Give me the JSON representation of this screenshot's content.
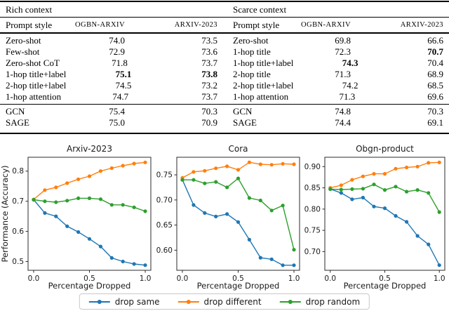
{
  "table": {
    "halves": [
      {
        "context_label": "Rich context",
        "columns": [
          "Prompt style",
          "OGBN-ARXIV",
          "ARXIV-2023"
        ],
        "groups": [
          {
            "rows": [
              {
                "label": "Zero-shot",
                "values": [
                  "74.0",
                  "73.5"
                ],
                "bold": [
                  false,
                  false
                ]
              },
              {
                "label": "Few-shot",
                "values": [
                  "72.9",
                  "73.6"
                ],
                "bold": [
                  false,
                  false
                ]
              },
              {
                "label": "Zero-shot CoT",
                "values": [
                  "71.8",
                  "73.7"
                ],
                "bold": [
                  false,
                  false
                ]
              },
              {
                "label": "1-hop title+label",
                "values": [
                  "75.1",
                  "73.8"
                ],
                "bold": [
                  true,
                  true
                ]
              },
              {
                "label": "2-hop title+label",
                "values": [
                  "74.5",
                  "73.2"
                ],
                "bold": [
                  false,
                  false
                ]
              },
              {
                "label": "1-hop attention",
                "values": [
                  "74.7",
                  "73.7"
                ],
                "bold": [
                  false,
                  false
                ]
              }
            ]
          },
          {
            "rows": [
              {
                "label": "GCN",
                "values": [
                  "75.4",
                  "70.3"
                ],
                "bold": [
                  false,
                  false
                ]
              },
              {
                "label": "SAGE",
                "values": [
                  "75.0",
                  "70.9"
                ],
                "bold": [
                  false,
                  false
                ]
              }
            ]
          }
        ]
      },
      {
        "context_label": "Scarce context",
        "columns": [
          "Prompt style",
          "OGBN-ARXIV",
          "ARXIV-2023"
        ],
        "groups": [
          {
            "rows": [
              {
                "label": "Zero-shot",
                "values": [
                  "69.8",
                  "66.6"
                ],
                "bold": [
                  false,
                  false
                ]
              },
              {
                "label": "1-hop title",
                "values": [
                  "72.3",
                  "70.7"
                ],
                "bold": [
                  false,
                  true
                ]
              },
              {
                "label": "1-hop title+label",
                "values": [
                  "74.3",
                  "70.4"
                ],
                "bold": [
                  true,
                  false
                ]
              },
              {
                "label": "2-hop title",
                "values": [
                  "71.3",
                  "68.9"
                ],
                "bold": [
                  false,
                  false
                ]
              },
              {
                "label": "2-hop title+label",
                "values": [
                  "74.2",
                  "68.5"
                ],
                "bold": [
                  false,
                  false
                ]
              },
              {
                "label": "1-hop attention",
                "values": [
                  "71.3",
                  "69.6"
                ],
                "bold": [
                  false,
                  false
                ]
              }
            ]
          },
          {
            "rows": [
              {
                "label": "GCN",
                "values": [
                  "74.8",
                  "70.3"
                ],
                "bold": [
                  false,
                  false
                ]
              },
              {
                "label": "SAGE",
                "values": [
                  "74.4",
                  "69.1"
                ],
                "bold": [
                  false,
                  false
                ]
              }
            ]
          }
        ]
      }
    ]
  },
  "chart_data": [
    {
      "type": "line",
      "title": "Arxiv-2023",
      "xlabel": "Percentage Dropped",
      "ylabel": "Performance (Accuracy)",
      "x": [
        0.0,
        0.1,
        0.2,
        0.3,
        0.4,
        0.5,
        0.6,
        0.7,
        0.8,
        0.9,
        1.0
      ],
      "xticks": [
        "0.0",
        "0.5",
        "1.0"
      ],
      "yticks": [
        "0.5",
        "0.6",
        "0.7",
        "0.8"
      ],
      "xlim": [
        -0.05,
        1.05
      ],
      "ylim": [
        0.471,
        0.846
      ],
      "grid": false,
      "legend_position": "below-figure",
      "series": [
        {
          "name": "drop same",
          "color": "#1f77b4",
          "values": [
            0.705,
            0.661,
            0.65,
            0.617,
            0.598,
            0.575,
            0.55,
            0.512,
            0.5,
            0.492,
            0.488
          ]
        },
        {
          "name": "drop different",
          "color": "#ff7f0e",
          "values": [
            0.706,
            0.737,
            0.746,
            0.76,
            0.773,
            0.783,
            0.8,
            0.81,
            0.818,
            0.825,
            0.829
          ]
        },
        {
          "name": "drop random",
          "color": "#2ca02c",
          "values": [
            0.705,
            0.7,
            0.697,
            0.702,
            0.71,
            0.71,
            0.707,
            0.688,
            0.688,
            0.68,
            0.667
          ]
        }
      ]
    },
    {
      "type": "line",
      "title": "Cora",
      "xlabel": "Percentage Dropped",
      "ylabel": "",
      "x": [
        0.0,
        0.1,
        0.2,
        0.3,
        0.4,
        0.5,
        0.6,
        0.7,
        0.8,
        0.9,
        1.0
      ],
      "xticks": [
        "0.0",
        "0.5",
        "1.0"
      ],
      "yticks": [
        "0.60",
        "0.65",
        "0.70",
        "0.75"
      ],
      "xlim": [
        -0.05,
        1.05
      ],
      "ylim": [
        0.56,
        0.785
      ],
      "grid": false,
      "legend_position": "below-figure",
      "series": [
        {
          "name": "drop same",
          "color": "#1f77b4",
          "values": [
            0.74,
            0.69,
            0.674,
            0.667,
            0.672,
            0.656,
            0.621,
            0.585,
            0.582,
            0.57,
            0.57
          ]
        },
        {
          "name": "drop different",
          "color": "#ff7f0e",
          "values": [
            0.744,
            0.756,
            0.758,
            0.763,
            0.767,
            0.76,
            0.775,
            0.771,
            0.77,
            0.772,
            0.771
          ]
        },
        {
          "name": "drop random",
          "color": "#2ca02c",
          "values": [
            0.74,
            0.74,
            0.733,
            0.736,
            0.725,
            0.743,
            0.704,
            0.699,
            0.679,
            0.689,
            0.601
          ]
        }
      ]
    },
    {
      "type": "line",
      "title": "Obgn-product",
      "xlabel": "Percentage Dropped",
      "ylabel": "",
      "x": [
        0.0,
        0.1,
        0.2,
        0.3,
        0.4,
        0.5,
        0.6,
        0.7,
        0.8,
        0.9,
        1.0
      ],
      "xticks": [
        "0.0",
        "0.5",
        "1.0"
      ],
      "yticks": [
        "0.70",
        "0.75",
        "0.80",
        "0.85",
        "0.90"
      ],
      "xlim": [
        -0.05,
        1.05
      ],
      "ylim": [
        0.656,
        0.922
      ],
      "grid": false,
      "legend_position": "below-figure",
      "series": [
        {
          "name": "drop same",
          "color": "#1f77b4",
          "values": [
            0.847,
            0.838,
            0.823,
            0.827,
            0.806,
            0.802,
            0.784,
            0.77,
            0.737,
            0.717,
            0.668
          ]
        },
        {
          "name": "drop different",
          "color": "#ff7f0e",
          "values": [
            0.85,
            0.856,
            0.869,
            0.877,
            0.883,
            0.883,
            0.895,
            0.898,
            0.9,
            0.909,
            0.91
          ]
        },
        {
          "name": "drop random",
          "color": "#2ca02c",
          "values": [
            0.847,
            0.846,
            0.847,
            0.848,
            0.858,
            0.845,
            0.853,
            0.841,
            0.845,
            0.838,
            0.793
          ]
        }
      ]
    }
  ],
  "legend": {
    "items": [
      {
        "label": "drop same",
        "color": "#1f77b4"
      },
      {
        "label": "drop different",
        "color": "#ff7f0e"
      },
      {
        "label": "drop random",
        "color": "#2ca02c"
      }
    ]
  }
}
